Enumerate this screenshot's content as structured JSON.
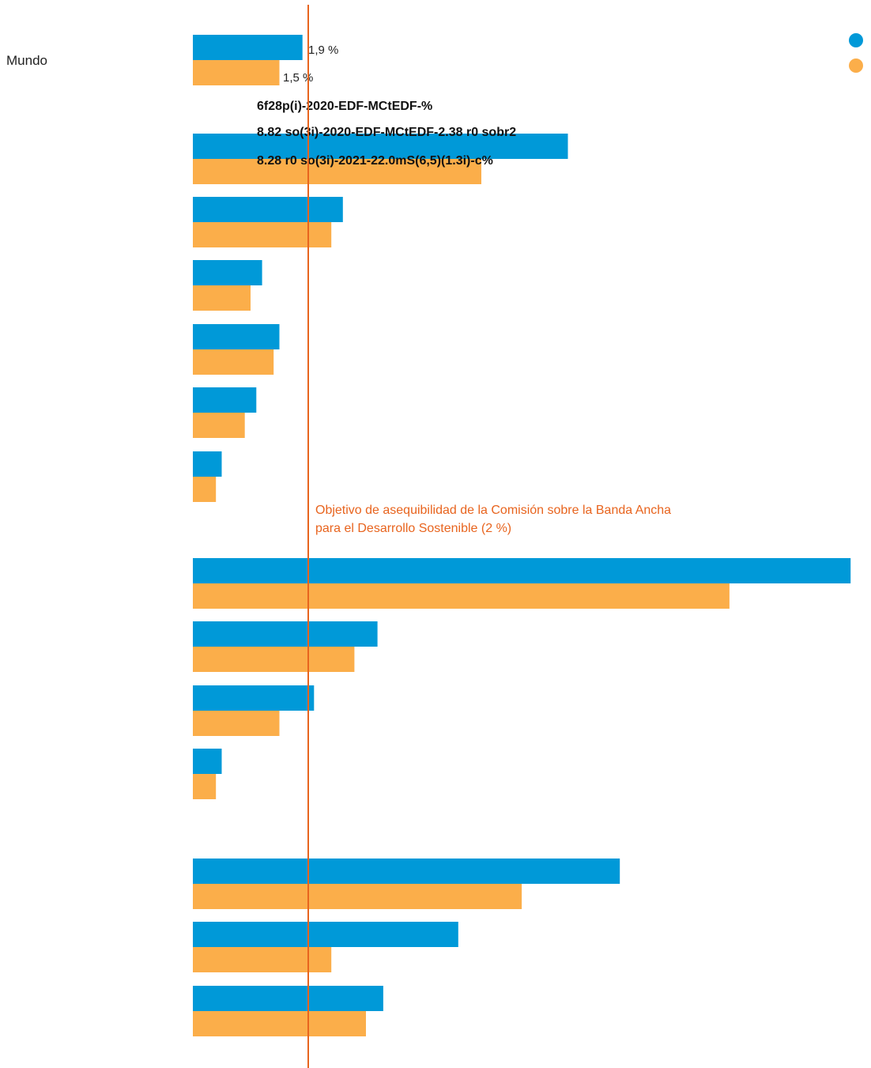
{
  "chart_data": {
    "type": "bar",
    "orientation": "horizontal",
    "categories": [
      "Mundo",
      "",
      "",
      "",
      "",
      "",
      "",
      "",
      "",
      "",
      "",
      "",
      "",
      ""
    ],
    "series": [
      {
        "color": "#0099d8",
        "values": [
          1.9,
          6.5,
          2.6,
          1.2,
          1.5,
          1.1,
          0.5,
          11.4,
          3.2,
          2.1,
          0.5,
          7.4,
          4.6,
          3.3
        ]
      },
      {
        "color": "#fbae4a",
        "values": [
          1.5,
          5.0,
          2.4,
          1.0,
          1.4,
          0.9,
          0.4,
          9.3,
          2.8,
          1.5,
          0.4,
          5.7,
          2.4,
          3.0
        ]
      }
    ],
    "value_labels": [
      "1,9 %",
      "1,5 %"
    ],
    "garbled_text_lines": [
      "6f28p(i)-2020-EDF-MCtEDF-%",
      "8.82 so(3i)-2020-EDF-MCtEDF-2.38 r0 sobr2",
      "8.28 r0 so(3i)-2021-22.0mS(6,5)(1.3i)-c%"
    ],
    "reference_line": {
      "value": 2,
      "color": "#e8641e",
      "label_line1": "Objetivo de asequibilidad de la Comisión sobre la Banda Ancha",
      "label_line2": "para el Desarrollo Sostenible (2 %)"
    },
    "legend": {
      "placement": "top-right"
    },
    "xlim": [
      0,
      11.4
    ],
    "grid": false
  }
}
